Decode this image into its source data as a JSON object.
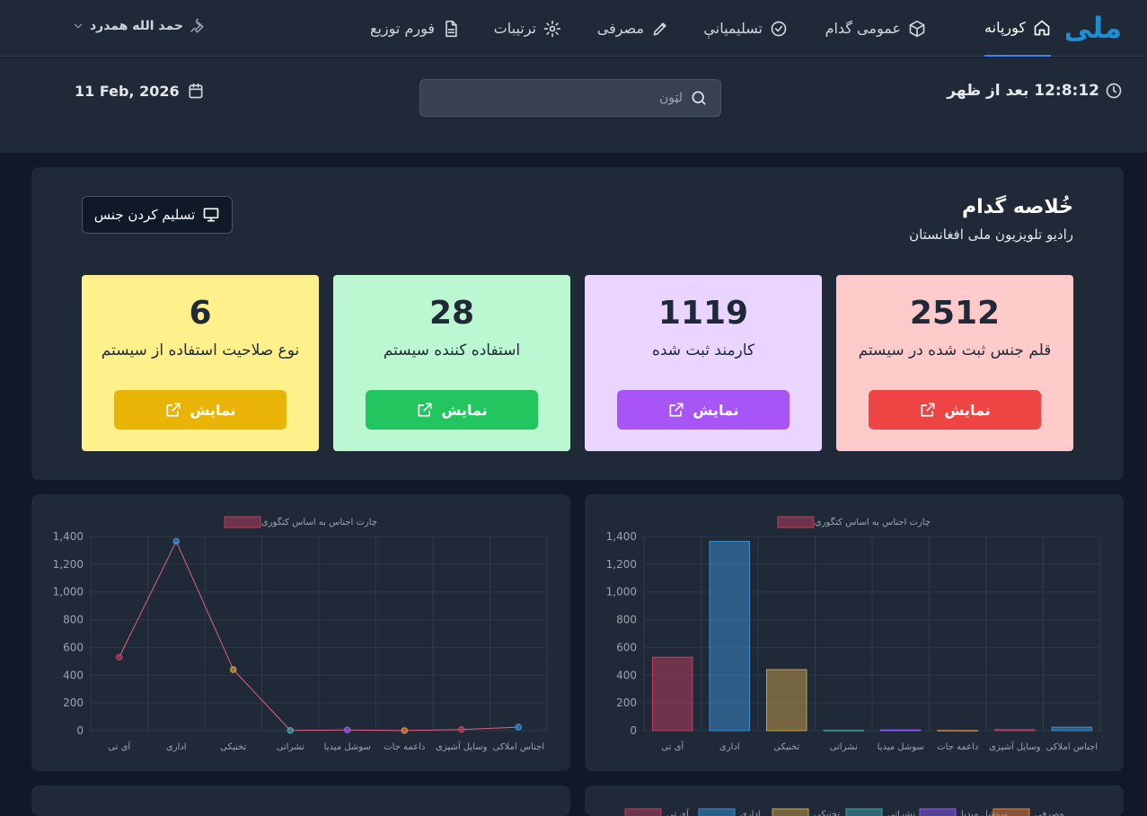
{
  "brand": {
    "logo_text": "ملی",
    "logo_color": "#1d8fd1"
  },
  "nav": {
    "items": [
      {
        "label": "کورپانه",
        "icon": "home-icon",
        "active": true
      },
      {
        "label": "عمومی گدام",
        "icon": "box-icon"
      },
      {
        "label": "تسلیمیانې",
        "icon": "check-circle-icon"
      },
      {
        "label": "مصرفی",
        "icon": "pencil-icon"
      },
      {
        "label": "ترتیبات",
        "icon": "gear-icon"
      },
      {
        "label": "فورم توزیع",
        "icon": "document-icon"
      }
    ],
    "user": "حمد الله همدرد"
  },
  "header": {
    "time": "12:8:12 بعد از ظهر",
    "date": "11 Feb, 2026",
    "search_placeholder": "لټون"
  },
  "summary": {
    "title": "خُلاصه گدام",
    "subtitle": "رادیو تلویزیون ملی افغانستان",
    "deliver_button": "تسلیم کردن جنس",
    "cards": [
      {
        "value": "2512",
        "label": "قلم جنس ثبت شده در سیستم",
        "button": "نمایش",
        "bg": "#fecaca",
        "btn": "#ef4444"
      },
      {
        "value": "1119",
        "label": "کارمند ثبت شده",
        "button": "نمایش",
        "bg": "#e9d5ff",
        "btn": "#a855f7"
      },
      {
        "value": "28",
        "label": "استفاده کننده سیستم",
        "button": "نمایش",
        "bg": "#bbf7d0",
        "btn": "#22c55e"
      },
      {
        "value": "6",
        "label": "نوع صلاحیت استفاده از سیستم",
        "button": "نمایش",
        "bg": "#fef08a",
        "btn": "#eab308"
      }
    ]
  },
  "chart_data": [
    {
      "type": "bar",
      "legend": "چارت اجناس به اساس کتگوری",
      "categories": [
        "آی تی",
        "اداری",
        "تخنیکی",
        "نشراتی",
        "سوشل میدیا",
        "داعمه جات",
        "وسایل آشپزی",
        "اجناس املاکی"
      ],
      "values": [
        530,
        1365,
        440,
        2,
        5,
        1,
        8,
        25
      ],
      "colors": [
        "#be3f5f",
        "#3b8fd6",
        "#c9a24a",
        "#3fa5a5",
        "#8b5cf6",
        "#e8833a",
        "#be3f5f",
        "#3b8fd6"
      ],
      "ylim": [
        0,
        1400
      ],
      "yticks": [
        "0",
        "200",
        "400",
        "600",
        "800",
        "1,000",
        "1,200",
        "1,400"
      ],
      "grid": true
    },
    {
      "type": "line",
      "legend": "چارت اجناس به اساس کتگوری",
      "categories": [
        "آی تی",
        "اداری",
        "تخنیکی",
        "نشراتی",
        "سوشل میدیا",
        "داعمه جات",
        "وسایل آشپزی",
        "اجناس املاکی"
      ],
      "values": [
        530,
        1365,
        440,
        2,
        5,
        1,
        8,
        25
      ],
      "colors": [
        "#be3f5f",
        "#3b8fd6",
        "#c9a24a",
        "#3fa5a5",
        "#8b5cf6",
        "#e8833a",
        "#be3f5f",
        "#3b8fd6"
      ],
      "line_color": "#e06080",
      "ylim": [
        0,
        1400
      ],
      "yticks": [
        "0",
        "200",
        "400",
        "600",
        "800",
        "1,000",
        "1,200",
        "1,400"
      ],
      "grid": true
    }
  ],
  "bottom_legend": [
    "آی تی",
    "اداری",
    "تخنیکی",
    "نشراتی",
    "سوشل میدیا",
    "مصرفی"
  ]
}
